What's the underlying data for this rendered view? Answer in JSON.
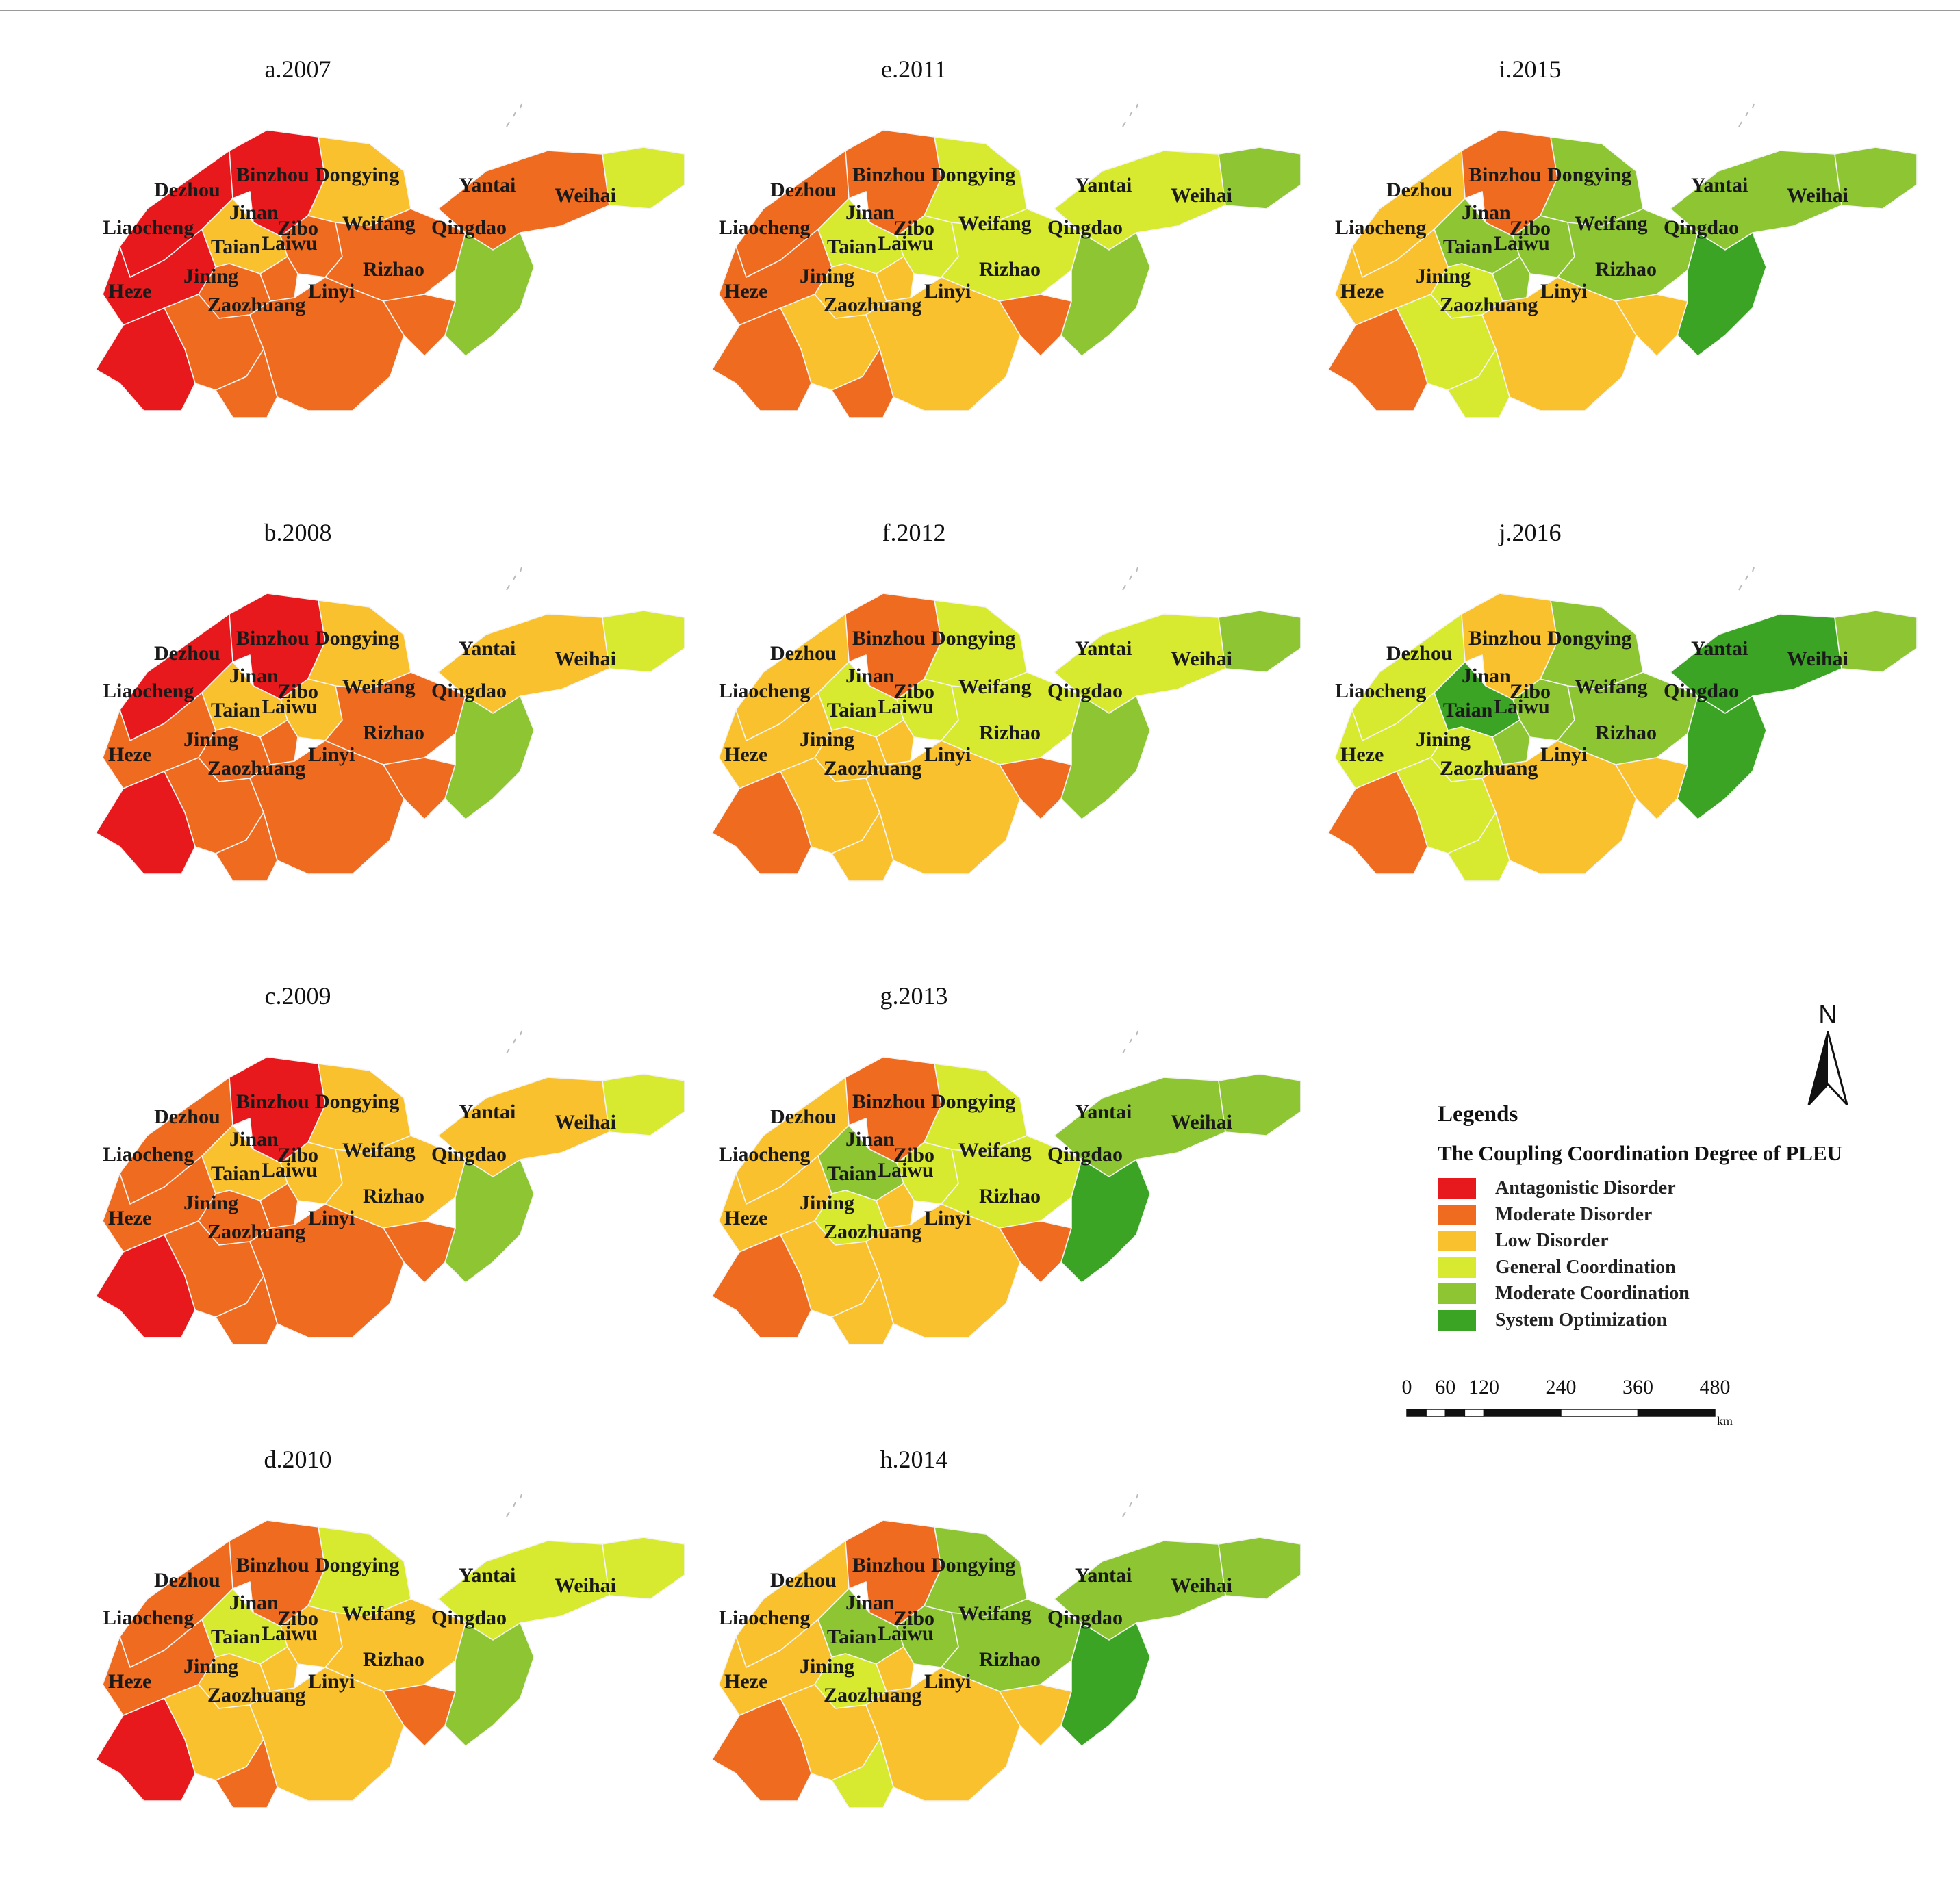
{
  "colors": {
    "antagonistic": "#e8191c",
    "moderate_disorder": "#ee6b1f",
    "low_disorder": "#f8c12d",
    "general": "#d7ea2f",
    "moderate_coord": "#8ec633",
    "optimization": "#3ca424"
  },
  "legend": {
    "title": "Legends",
    "subtitle": "The Coupling Coordination Degree of PLEU",
    "items": [
      {
        "key": "antagonistic",
        "label": "Antagonistic Disorder"
      },
      {
        "key": "moderate_disorder",
        "label": "Moderate Disorder"
      },
      {
        "key": "low_disorder",
        "label": "Low Disorder"
      },
      {
        "key": "general",
        "label": "General Coordination"
      },
      {
        "key": "moderate_coord",
        "label": "Moderate Coordination"
      },
      {
        "key": "optimization",
        "label": "System Optimization"
      }
    ]
  },
  "north_label": "N",
  "scale": {
    "ticks": [
      "0",
      "60",
      "120",
      "240",
      "360",
      "480"
    ],
    "values": [
      0,
      60,
      120,
      240,
      360,
      480
    ],
    "unit": "km"
  },
  "cities": [
    "Dezhou",
    "Binzhou",
    "Dongying",
    "Yantai",
    "Weihai",
    "Liaocheng",
    "Jinan",
    "Zibo",
    "Weifang",
    "Qingdao",
    "Taian",
    "Laiwu",
    "Jining",
    "Heze",
    "Linyi",
    "Rizhao",
    "Zaozhuang"
  ],
  "maps": [
    {
      "title": "a.2007",
      "classes": {
        "Dezhou": "antagonistic",
        "Binzhou": "antagonistic",
        "Dongying": "low_disorder",
        "Yantai": "moderate_disorder",
        "Weihai": "general",
        "Liaocheng": "antagonistic",
        "Jinan": "low_disorder",
        "Zibo": "moderate_disorder",
        "Weifang": "moderate_disorder",
        "Qingdao": "moderate_coord",
        "Taian": "moderate_disorder",
        "Laiwu": "moderate_disorder",
        "Jining": "moderate_disorder",
        "Heze": "antagonistic",
        "Linyi": "moderate_disorder",
        "Rizhao": "moderate_disorder",
        "Zaozhuang": "moderate_disorder"
      }
    },
    {
      "title": "b.2008",
      "classes": {
        "Dezhou": "antagonistic",
        "Binzhou": "antagonistic",
        "Dongying": "low_disorder",
        "Yantai": "low_disorder",
        "Weihai": "general",
        "Liaocheng": "moderate_disorder",
        "Jinan": "low_disorder",
        "Zibo": "low_disorder",
        "Weifang": "moderate_disorder",
        "Qingdao": "moderate_coord",
        "Taian": "moderate_disorder",
        "Laiwu": "moderate_disorder",
        "Jining": "moderate_disorder",
        "Heze": "antagonistic",
        "Linyi": "moderate_disorder",
        "Rizhao": "moderate_disorder",
        "Zaozhuang": "moderate_disorder"
      }
    },
    {
      "title": "c.2009",
      "classes": {
        "Dezhou": "moderate_disorder",
        "Binzhou": "antagonistic",
        "Dongying": "low_disorder",
        "Yantai": "low_disorder",
        "Weihai": "general",
        "Liaocheng": "moderate_disorder",
        "Jinan": "low_disorder",
        "Zibo": "low_disorder",
        "Weifang": "low_disorder",
        "Qingdao": "moderate_coord",
        "Taian": "moderate_disorder",
        "Laiwu": "moderate_disorder",
        "Jining": "moderate_disorder",
        "Heze": "antagonistic",
        "Linyi": "moderate_disorder",
        "Rizhao": "moderate_disorder",
        "Zaozhuang": "moderate_disorder"
      }
    },
    {
      "title": "d.2010",
      "classes": {
        "Dezhou": "moderate_disorder",
        "Binzhou": "moderate_disorder",
        "Dongying": "general",
        "Yantai": "general",
        "Weihai": "general",
        "Liaocheng": "moderate_disorder",
        "Jinan": "general",
        "Zibo": "low_disorder",
        "Weifang": "low_disorder",
        "Qingdao": "moderate_coord",
        "Taian": "low_disorder",
        "Laiwu": "low_disorder",
        "Jining": "low_disorder",
        "Heze": "antagonistic",
        "Linyi": "low_disorder",
        "Rizhao": "moderate_disorder",
        "Zaozhuang": "moderate_disorder"
      }
    },
    {
      "title": "e.2011",
      "classes": {
        "Dezhou": "moderate_disorder",
        "Binzhou": "moderate_disorder",
        "Dongying": "general",
        "Yantai": "general",
        "Weihai": "moderate_coord",
        "Liaocheng": "moderate_disorder",
        "Jinan": "general",
        "Zibo": "general",
        "Weifang": "general",
        "Qingdao": "moderate_coord",
        "Taian": "low_disorder",
        "Laiwu": "low_disorder",
        "Jining": "low_disorder",
        "Heze": "moderate_disorder",
        "Linyi": "low_disorder",
        "Rizhao": "moderate_disorder",
        "Zaozhuang": "moderate_disorder"
      }
    },
    {
      "title": "f.2012",
      "classes": {
        "Dezhou": "low_disorder",
        "Binzhou": "moderate_disorder",
        "Dongying": "general",
        "Yantai": "general",
        "Weihai": "moderate_coord",
        "Liaocheng": "low_disorder",
        "Jinan": "general",
        "Zibo": "general",
        "Weifang": "general",
        "Qingdao": "moderate_coord",
        "Taian": "low_disorder",
        "Laiwu": "low_disorder",
        "Jining": "low_disorder",
        "Heze": "moderate_disorder",
        "Linyi": "low_disorder",
        "Rizhao": "moderate_disorder",
        "Zaozhuang": "low_disorder"
      }
    },
    {
      "title": "g.2013",
      "classes": {
        "Dezhou": "low_disorder",
        "Binzhou": "moderate_disorder",
        "Dongying": "general",
        "Yantai": "moderate_coord",
        "Weihai": "moderate_coord",
        "Liaocheng": "low_disorder",
        "Jinan": "moderate_coord",
        "Zibo": "general",
        "Weifang": "general",
        "Qingdao": "optimization",
        "Taian": "general",
        "Laiwu": "low_disorder",
        "Jining": "low_disorder",
        "Heze": "moderate_disorder",
        "Linyi": "low_disorder",
        "Rizhao": "moderate_disorder",
        "Zaozhuang": "low_disorder"
      }
    },
    {
      "title": "h.2014",
      "classes": {
        "Dezhou": "low_disorder",
        "Binzhou": "moderate_disorder",
        "Dongying": "moderate_coord",
        "Yantai": "moderate_coord",
        "Weihai": "moderate_coord",
        "Liaocheng": "low_disorder",
        "Jinan": "moderate_coord",
        "Zibo": "moderate_coord",
        "Weifang": "moderate_coord",
        "Qingdao": "optimization",
        "Taian": "general",
        "Laiwu": "low_disorder",
        "Jining": "low_disorder",
        "Heze": "moderate_disorder",
        "Linyi": "low_disorder",
        "Rizhao": "low_disorder",
        "Zaozhuang": "general"
      }
    },
    {
      "title": "i.2015",
      "classes": {
        "Dezhou": "low_disorder",
        "Binzhou": "moderate_disorder",
        "Dongying": "moderate_coord",
        "Yantai": "moderate_coord",
        "Weihai": "moderate_coord",
        "Liaocheng": "low_disorder",
        "Jinan": "moderate_coord",
        "Zibo": "moderate_coord",
        "Weifang": "moderate_coord",
        "Qingdao": "optimization",
        "Taian": "general",
        "Laiwu": "moderate_coord",
        "Jining": "general",
        "Heze": "moderate_disorder",
        "Linyi": "low_disorder",
        "Rizhao": "low_disorder",
        "Zaozhuang": "general"
      }
    },
    {
      "title": "j.2016",
      "classes": {
        "Dezhou": "general",
        "Binzhou": "low_disorder",
        "Dongying": "moderate_coord",
        "Yantai": "optimization",
        "Weihai": "moderate_coord",
        "Liaocheng": "general",
        "Jinan": "optimization",
        "Zibo": "moderate_coord",
        "Weifang": "moderate_coord",
        "Qingdao": "optimization",
        "Taian": "general",
        "Laiwu": "moderate_coord",
        "Jining": "general",
        "Heze": "moderate_disorder",
        "Linyi": "low_disorder",
        "Rizhao": "low_disorder",
        "Zaozhuang": "general"
      }
    }
  ]
}
